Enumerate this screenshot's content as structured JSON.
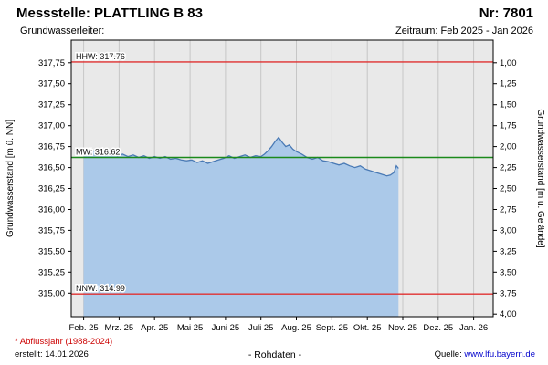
{
  "header": {
    "title": "Messstelle: PLATTLING B 83",
    "number": "Nr: 7801",
    "aquifer": "Grundwasserleiter:",
    "period": "Zeitraum: Feb 2025 - Jan 2026"
  },
  "footer": {
    "note": "* Abflussjahr (1988-2024)",
    "created": "erstellt: 14.01.2026",
    "center": "- Rohdaten -",
    "source_label": "Quelle:",
    "source_link": "www.lfu.bayern.de"
  },
  "colors": {
    "plot_bg": "#e9e9e9",
    "grid": "#c6c6c6",
    "axis": "#000000",
    "link": "#0000cc",
    "note_red": "#cc0000"
  },
  "chart_data": {
    "type": "area",
    "title": "",
    "ylabel_left": "Grundwasserstand [m ü. NN]",
    "ylabel_right": "Grundwasserstand [m u. Gelände]",
    "xlabel": "",
    "ylim_left": [
      314.72,
      318.02
    ],
    "xlim_months": [
      -0.35,
      11.55
    ],
    "grid": "vertical-monthly",
    "x_tick_labels": [
      "Feb. 25",
      "Mrz. 25",
      "Apr. 25",
      "Mai 25",
      "Juni 25",
      "Juli 25",
      "Aug. 25",
      "Sept. 25",
      "Okt. 25",
      "Nov. 25",
      "Dez. 25",
      "Jan. 26"
    ],
    "y_left_tick_values": [
      317.75,
      317.5,
      317.25,
      317.0,
      316.75,
      316.5,
      316.25,
      316.0,
      315.75,
      315.5,
      315.25,
      315.0
    ],
    "y_left_tick_labels": [
      "317,75",
      "317,50",
      "317,25",
      "317,00",
      "316,75",
      "316,50",
      "316,25",
      "316,00",
      "315,75",
      "315,50",
      "315,25",
      "315,00"
    ],
    "y_right_tick_values": [
      1.0,
      1.25,
      1.5,
      1.75,
      2.0,
      2.25,
      2.5,
      2.75,
      3.0,
      3.25,
      3.5,
      3.75,
      4.0
    ],
    "y_right_tick_labels": [
      "1,00",
      "1,25",
      "1,50",
      "1,75",
      "2,00",
      "2,25",
      "2,50",
      "2,75",
      "3,00",
      "3,25",
      "3,50",
      "3,75",
      "4,00"
    ],
    "reference_lines": [
      {
        "name": "HHW",
        "label": "HHW: 317.76",
        "value": 317.76,
        "color": "#e03030"
      },
      {
        "name": "MW",
        "label": "MW: 316.62",
        "value": 316.62,
        "color": "#1b8a1b"
      },
      {
        "name": "NNW",
        "label": "NNW: 314.99",
        "value": 314.99,
        "color": "#e03030"
      }
    ],
    "series": [
      {
        "name": "Grundwasserstand Rohdaten",
        "line_color": "#4a7ab5",
        "fill_color": "#abc9e9",
        "x_months": [
          0.0,
          0.1,
          0.2,
          0.35,
          0.5,
          0.65,
          0.8,
          0.95,
          1.1,
          1.25,
          1.4,
          1.55,
          1.7,
          1.85,
          2.0,
          2.15,
          2.3,
          2.45,
          2.6,
          2.75,
          2.9,
          3.05,
          3.2,
          3.35,
          3.5,
          3.65,
          3.8,
          3.95,
          4.1,
          4.25,
          4.4,
          4.55,
          4.7,
          4.85,
          5.0,
          5.1,
          5.2,
          5.3,
          5.4,
          5.5,
          5.6,
          5.7,
          5.8,
          5.9,
          6.0,
          6.15,
          6.3,
          6.45,
          6.6,
          6.75,
          6.9,
          7.05,
          7.2,
          7.35,
          7.5,
          7.65,
          7.8,
          7.95,
          8.1,
          8.25,
          8.4,
          8.55,
          8.65,
          8.75,
          8.82,
          8.88
        ],
        "values": [
          316.67,
          316.7,
          316.68,
          316.71,
          316.68,
          316.66,
          316.67,
          316.64,
          316.66,
          316.63,
          316.65,
          316.62,
          316.64,
          316.61,
          316.63,
          316.61,
          316.63,
          316.6,
          316.61,
          316.59,
          316.58,
          316.59,
          316.56,
          316.58,
          316.55,
          316.57,
          316.59,
          316.61,
          316.64,
          316.61,
          316.63,
          316.65,
          316.62,
          316.64,
          316.63,
          316.66,
          316.7,
          316.75,
          316.81,
          316.86,
          316.8,
          316.75,
          316.77,
          316.72,
          316.69,
          316.66,
          316.62,
          316.6,
          316.62,
          316.58,
          316.57,
          316.55,
          316.53,
          316.55,
          316.52,
          316.5,
          316.52,
          316.48,
          316.46,
          316.44,
          316.42,
          316.4,
          316.41,
          316.44,
          316.52,
          316.49
        ]
      }
    ]
  }
}
